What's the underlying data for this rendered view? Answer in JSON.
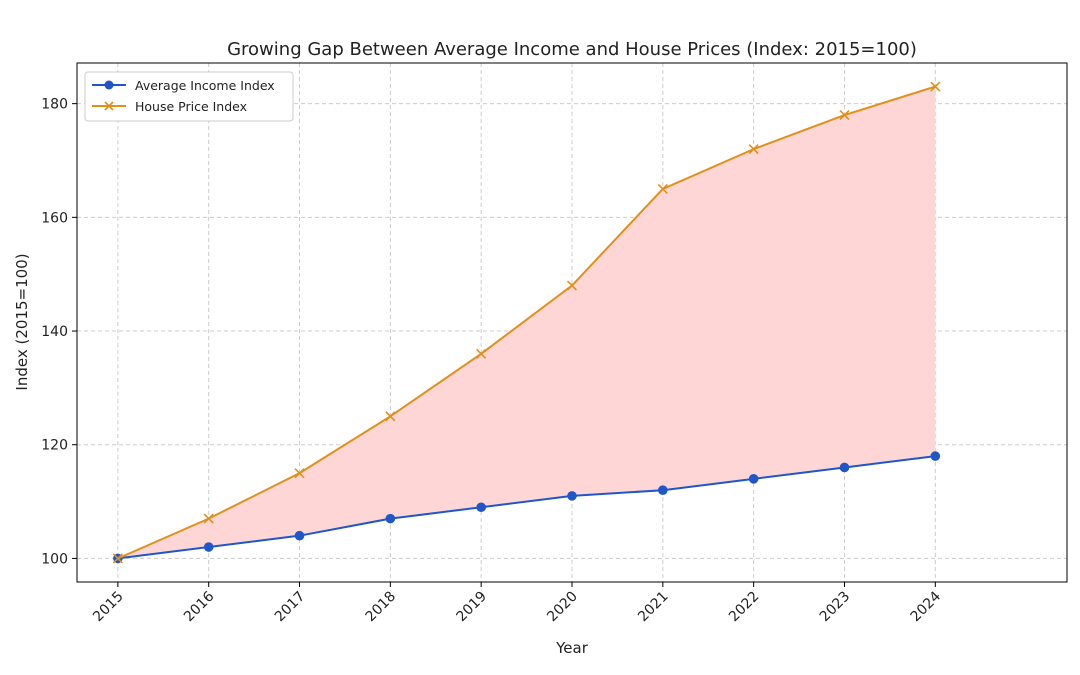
{
  "chart_data": {
    "type": "line",
    "title": "Growing Gap Between Average Income and House Prices (Index: 2015=100)",
    "xlabel": "Year",
    "ylabel": "Index (2015=100)",
    "x": [
      2015,
      2016,
      2017,
      2018,
      2019,
      2020,
      2021,
      2022,
      2023,
      2024
    ],
    "xlim": [
      2014.55,
      2025.45
    ],
    "ylim": [
      95.85,
      187.15
    ],
    "yticks": [
      100,
      120,
      140,
      160,
      180
    ],
    "grid": true,
    "legend_position": "top-left",
    "fill_between": {
      "series": [
        0,
        1
      ],
      "color": "#ffd6d6"
    },
    "series": [
      {
        "name": "Average Income Index",
        "color": "#1f56c9",
        "marker": "circle",
        "values": [
          100,
          102,
          104,
          107,
          109,
          111,
          112,
          114,
          116,
          118
        ]
      },
      {
        "name": "House Price Index",
        "color": "#e0901a",
        "marker": "x",
        "values": [
          100,
          107,
          115,
          125,
          136,
          148,
          165,
          172,
          178,
          183
        ]
      }
    ]
  }
}
